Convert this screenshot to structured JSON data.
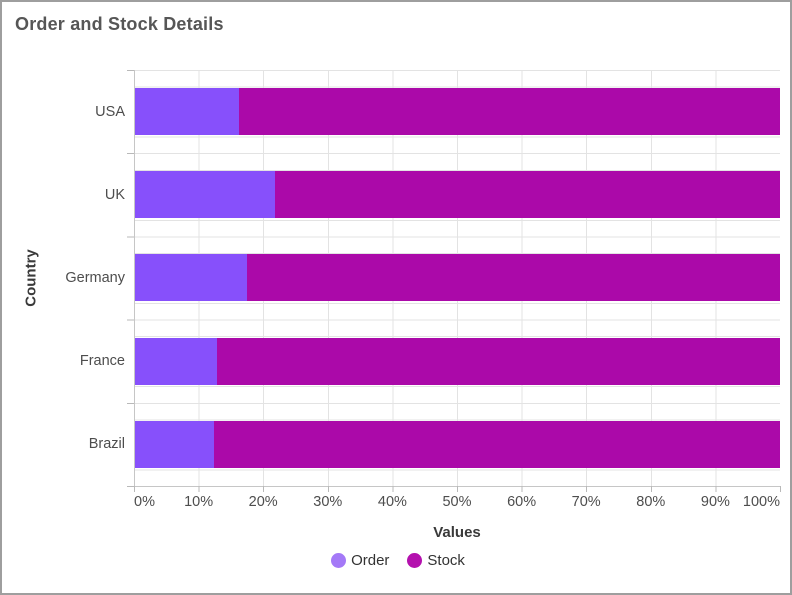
{
  "header": {
    "title": "Order and Stock Details"
  },
  "colors": {
    "order_series": "#8750fb",
    "stock_series": "#ab09a9",
    "legend_order_marker": "#a479f7",
    "legend_stock_marker": "#b411ae",
    "gridline": "#e3e3e3",
    "axis_line": "#c6c6c6",
    "tick": "#b9b9b9",
    "title_text": "#565656",
    "axis_label_text": "#4d4d4d",
    "frame_border": "#9e9e9e"
  },
  "chart_data": {
    "type": "bar",
    "subtype": "100%-stacked-horizontal",
    "title": "Order and Stock Details",
    "categories": [
      "USA",
      "UK",
      "Germany",
      "France",
      "Brazil"
    ],
    "series": [
      {
        "name": "Order",
        "color": "#8750fb",
        "values_pct": [
          16.2,
          21.9,
          17.5,
          12.9,
          12.4
        ]
      },
      {
        "name": "Stock",
        "color": "#ab09a9",
        "values_pct": [
          83.8,
          78.1,
          82.5,
          87.1,
          87.6
        ]
      }
    ],
    "xlabel": "Values",
    "ylabel": "Country",
    "x_ticks": [
      "0%",
      "10%",
      "20%",
      "30%",
      "40%",
      "50%",
      "60%",
      "70%",
      "80%",
      "90%",
      "100%"
    ],
    "xlim": [
      0,
      100
    ],
    "grid": true,
    "legend_position": "bottom",
    "legend": [
      "Order",
      "Stock"
    ]
  }
}
